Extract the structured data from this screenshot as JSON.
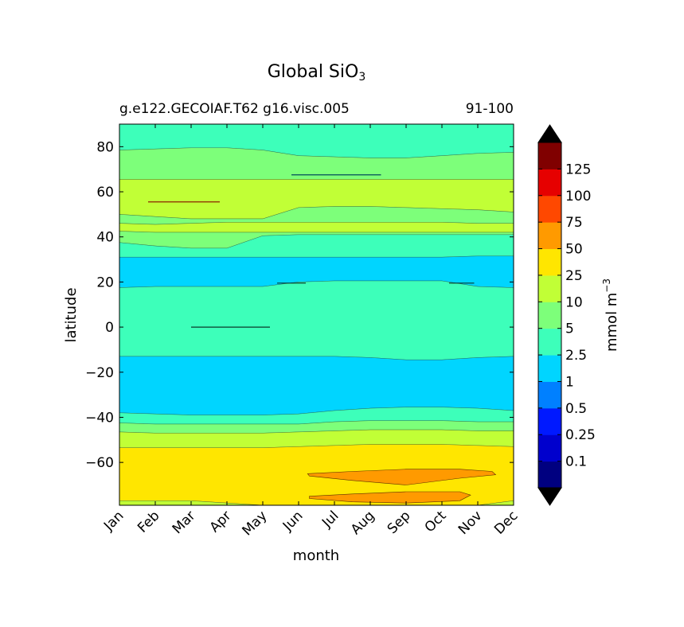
{
  "title": {
    "main": "Global SiO",
    "sub": "3"
  },
  "subtitle_left": "g.e122.GECOIAF.T62 g16.visc.005",
  "subtitle_right": "91-100",
  "chart_data": {
    "type": "heatmap",
    "title": "Global SiO3",
    "xlabel": "month",
    "ylabel": "latitude",
    "x_ticks": [
      "Jan",
      "Feb",
      "Mar",
      "Apr",
      "May",
      "Jun",
      "Jul",
      "Aug",
      "Sep",
      "Oct",
      "Nov",
      "Dec"
    ],
    "y_ticks": [
      80,
      60,
      40,
      20,
      0,
      -20,
      -40,
      -60
    ],
    "ylim": [
      -79,
      90
    ],
    "colorbar": {
      "label": "mmol m",
      "label_exponent": "−3",
      "levels": [
        "0.1",
        "0.25",
        "0.5",
        "1",
        "2.5",
        "5",
        "10",
        "25",
        "50",
        "75",
        "100",
        "125"
      ],
      "colors": [
        "#000080",
        "#0000cd",
        "#0019ff",
        "#0080ff",
        "#00d5ff",
        "#3dffba",
        "#7dff7a",
        "#c1ff36",
        "#ffe600",
        "#ff9a00",
        "#ff4800",
        "#e60000",
        "#800000"
      ],
      "extend": "both",
      "extend_colors": [
        "#000000",
        "#000000"
      ]
    },
    "bands": [
      {
        "class": "1",
        "north": [
          90,
          90,
          90,
          90,
          90,
          90,
          88.5,
          88.5,
          88.5,
          88.5,
          90,
          90
        ],
        "south": [
          90,
          90,
          90,
          90,
          90,
          90,
          84.5,
          84.5,
          84.5,
          84.5,
          90,
          90
        ]
      },
      {
        "class": "2.5",
        "north": [
          90,
          90,
          90,
          90,
          90,
          90,
          90,
          90,
          90,
          90,
          90,
          90
        ],
        "south": [
          78.5,
          79,
          79.5,
          79.5,
          78.5,
          76,
          75.5,
          75,
          75,
          76,
          77,
          77.5
        ]
      },
      {
        "class": "5",
        "north": [
          78.5,
          79,
          79.5,
          79.5,
          78.5,
          76,
          75.5,
          75,
          75,
          76,
          77,
          77.5
        ],
        "south": [
          65.5,
          65.5,
          65.5,
          65.5,
          65.5,
          65.5,
          65.5,
          65.5,
          65.5,
          65.5,
          65.5,
          65.5
        ]
      },
      {
        "class": "10",
        "north": [
          65.5,
          65.5,
          65.5,
          65.5,
          65.5,
          65.5,
          65.5,
          65.5,
          65.5,
          65.5,
          65.5,
          65.5
        ],
        "south": [
          50,
          49,
          48,
          48,
          48,
          53,
          53.5,
          53.5,
          53,
          52.5,
          52,
          51
        ]
      },
      {
        "class": "5",
        "north": [
          50,
          49,
          48,
          48,
          48,
          53,
          53.5,
          53.5,
          53,
          52.5,
          52,
          51
        ],
        "south": [
          46,
          45.5,
          46,
          46.5,
          46.5,
          46.5,
          46.5,
          46.5,
          46.5,
          46.5,
          46,
          46
        ]
      },
      {
        "class": "10",
        "north": [
          46,
          45.5,
          46,
          46.5,
          46.5,
          46.5,
          46.5,
          46.5,
          46.5,
          46.5,
          46,
          46
        ],
        "south": [
          42.5,
          42,
          42,
          42,
          42,
          42,
          42,
          42,
          42,
          42,
          42,
          42
        ]
      },
      {
        "class": "5",
        "north": [
          42.5,
          42,
          42,
          42,
          42,
          42,
          42,
          42,
          42,
          42,
          42,
          42
        ],
        "south": [
          37.5,
          36,
          35,
          35,
          40.5,
          41,
          41,
          41,
          41,
          41,
          41,
          41
        ]
      },
      {
        "class": "2.5",
        "north": [
          37.5,
          36,
          35,
          35,
          40.5,
          41,
          41,
          41,
          41,
          41,
          41,
          41
        ],
        "south": [
          31,
          31,
          31,
          31,
          31,
          31,
          31,
          31,
          31,
          31,
          31.5,
          31.5
        ]
      },
      {
        "class": "1",
        "north": [
          31,
          31,
          31,
          31,
          31,
          31,
          31,
          31,
          31,
          31,
          31.5,
          31.5
        ],
        "south": [
          17.5,
          18,
          18,
          18,
          18,
          20,
          20.5,
          20.5,
          20.5,
          20.5,
          18,
          17.5
        ]
      },
      {
        "class": "2.5",
        "north": [
          17.5,
          18,
          18,
          18,
          18,
          20,
          20.5,
          20.5,
          20.5,
          20.5,
          18,
          17.5
        ],
        "south": [
          -13,
          -13,
          -13,
          -13,
          -13,
          -13,
          -13,
          -13.5,
          -14.5,
          -14.5,
          -13.5,
          -13
        ]
      },
      {
        "class": "1",
        "north": [
          -13,
          -13,
          -13,
          -13,
          -13,
          -13,
          -13,
          -13.5,
          -14.5,
          -14.5,
          -13.5,
          -13
        ],
        "south": [
          -38,
          -38.5,
          -39,
          -39,
          -39,
          -38.5,
          -37,
          -36,
          -35.5,
          -35.5,
          -36,
          -37
        ]
      },
      {
        "class": "2.5",
        "north": [
          -38,
          -38.5,
          -39,
          -39,
          -39,
          -38.5,
          -37,
          -36,
          -35.5,
          -35.5,
          -36,
          -37
        ],
        "south": [
          -42.5,
          -43,
          -43,
          -43,
          -43,
          -43,
          -42,
          -41.5,
          -41.5,
          -41.5,
          -42,
          -42
        ]
      },
      {
        "class": "5",
        "north": [
          -42.5,
          -43,
          -43,
          -43,
          -43,
          -43,
          -42,
          -41.5,
          -41.5,
          -41.5,
          -42,
          -42
        ],
        "south": [
          -46.5,
          -47,
          -47,
          -47,
          -47,
          -46.5,
          -46,
          -45.5,
          -45.5,
          -45.5,
          -46,
          -46
        ]
      },
      {
        "class": "10",
        "north": [
          -46.5,
          -47,
          -47,
          -47,
          -47,
          -46.5,
          -46,
          -45.5,
          -45.5,
          -45.5,
          -46,
          -46
        ],
        "south": [
          -53.5,
          -53.5,
          -53.5,
          -53.5,
          -53.5,
          -53,
          -52.5,
          -52,
          -52,
          -52,
          -52.5,
          -53
        ]
      },
      {
        "class": "25",
        "north": [
          -53.5,
          -53.5,
          -53.5,
          -53.5,
          -53.5,
          -53,
          -52.5,
          -52,
          -52,
          -52,
          -52.5,
          -53
        ],
        "south": [
          -77,
          -77,
          -77,
          -78,
          -79,
          -79,
          -79,
          -79,
          -79,
          -79,
          -79,
          -77
        ]
      },
      {
        "class": "10",
        "north": [
          -77,
          -77,
          -77,
          -78,
          -79,
          -79,
          -79,
          -79,
          -79,
          -79,
          -79,
          -77
        ],
        "south": [
          -79,
          -79,
          -79,
          -79,
          -79,
          -79,
          -79,
          -79,
          -79,
          -79,
          -79,
          -79
        ]
      }
    ],
    "blobs": [
      {
        "class": "50",
        "points": [
          [
            5.25,
            -65
          ],
          [
            6.5,
            -64
          ],
          [
            8,
            -63
          ],
          [
            9.5,
            -63
          ],
          [
            10.4,
            -64
          ],
          [
            10.5,
            -65.5
          ],
          [
            9.5,
            -67
          ],
          [
            8,
            -70
          ],
          [
            6.5,
            -68
          ],
          [
            5.3,
            -66
          ]
        ]
      },
      {
        "class": "50",
        "points": [
          [
            5.3,
            -75
          ],
          [
            6.5,
            -74
          ],
          [
            8,
            -73
          ],
          [
            9.5,
            -73
          ],
          [
            9.8,
            -74.5
          ],
          [
            9.5,
            -77
          ],
          [
            8,
            -78
          ],
          [
            6.5,
            -77.5
          ],
          [
            5.3,
            -76
          ]
        ]
      }
    ],
    "contour_ticks": [
      {
        "x": [
          0.8,
          2.8
        ],
        "y": 55.5,
        "color": "#8b2500"
      },
      {
        "x": [
          4.8,
          7.3
        ],
        "y": 67.5,
        "color": "#004a5a"
      },
      {
        "x": [
          2,
          4.2
        ],
        "y": 0,
        "color": "#0a3a2a"
      },
      {
        "x": [
          4.4,
          5.2
        ],
        "y": 19.5,
        "color": "#0a3a2a"
      },
      {
        "x": [
          9.2,
          9.9
        ],
        "y": 19.5,
        "color": "#0a3a2a"
      }
    ]
  }
}
